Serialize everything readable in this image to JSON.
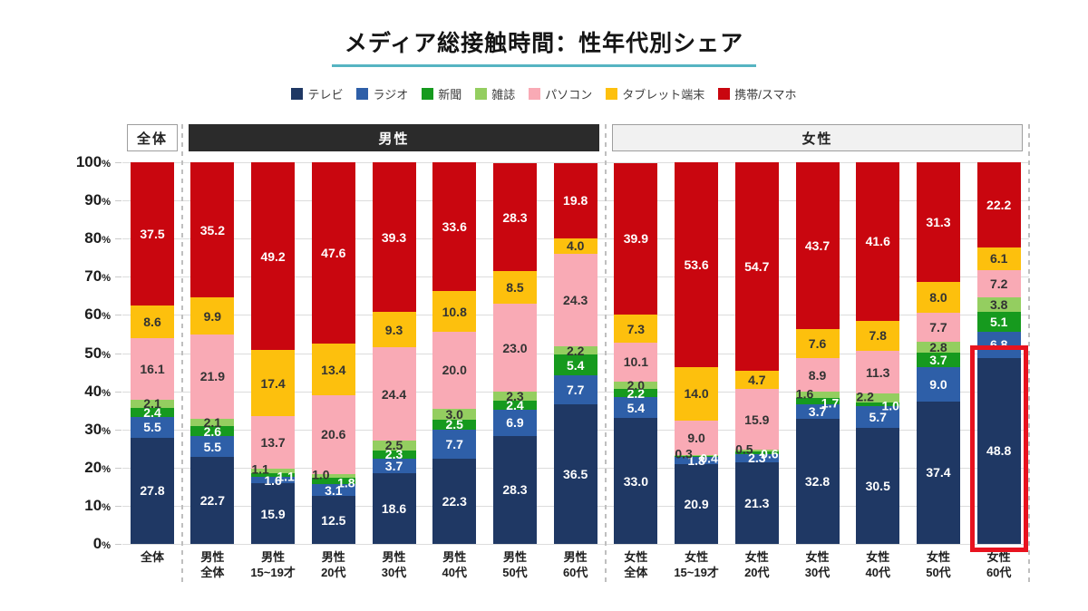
{
  "title": {
    "text": "メディア総接触時間：性年代別シェア",
    "underline_color": "#56B4C2"
  },
  "legend": {
    "items": [
      {
        "label": "テレビ",
        "color": "#1F3864"
      },
      {
        "label": "ラジオ",
        "color": "#2E5FA8"
      },
      {
        "label": "新聞",
        "color": "#169A1E"
      },
      {
        "label": "雑誌",
        "color": "#94CE60"
      },
      {
        "label": "パソコン",
        "color": "#F9AAB5"
      },
      {
        "label": "タブレット端末",
        "color": "#FDC00D"
      },
      {
        "label": "携帯/スマホ",
        "color": "#C9060F"
      }
    ]
  },
  "group_headers": [
    {
      "label": "全体",
      "variant": "outline"
    },
    {
      "label": "男性",
      "variant": "dark"
    },
    {
      "label": "女性",
      "variant": "light"
    }
  ],
  "y_axis": {
    "ticks": [
      100,
      90,
      80,
      70,
      60,
      50,
      40,
      30,
      20,
      10,
      0
    ],
    "suffix": "%"
  },
  "chart_data": {
    "type": "bar",
    "stacked": true,
    "unit": "%",
    "ylim": [
      0,
      100
    ],
    "grid": true,
    "legend_position": "top",
    "categories": [
      {
        "group": 0,
        "label_lines": [
          "全体"
        ]
      },
      {
        "group": 1,
        "label_lines": [
          "男性",
          "全体"
        ]
      },
      {
        "group": 1,
        "label_lines": [
          "男性",
          "15~19才"
        ]
      },
      {
        "group": 1,
        "label_lines": [
          "男性",
          "20代"
        ]
      },
      {
        "group": 1,
        "label_lines": [
          "男性",
          "30代"
        ]
      },
      {
        "group": 1,
        "label_lines": [
          "男性",
          "40代"
        ]
      },
      {
        "group": 1,
        "label_lines": [
          "男性",
          "50代"
        ]
      },
      {
        "group": 1,
        "label_lines": [
          "男性",
          "60代"
        ]
      },
      {
        "group": 2,
        "label_lines": [
          "女性",
          "全体"
        ]
      },
      {
        "group": 2,
        "label_lines": [
          "女性",
          "15~19才"
        ]
      },
      {
        "group": 2,
        "label_lines": [
          "女性",
          "20代"
        ]
      },
      {
        "group": 2,
        "label_lines": [
          "女性",
          "30代"
        ]
      },
      {
        "group": 2,
        "label_lines": [
          "女性",
          "40代"
        ]
      },
      {
        "group": 2,
        "label_lines": [
          "女性",
          "50代"
        ]
      },
      {
        "group": 2,
        "label_lines": [
          "女性",
          "60代"
        ]
      }
    ],
    "series": [
      {
        "name": "テレビ",
        "color": "#1F3864",
        "label_color": "#FFFFFF",
        "values": [
          27.8,
          22.7,
          15.9,
          12.5,
          18.6,
          22.3,
          28.3,
          36.5,
          33.0,
          20.9,
          21.3,
          32.8,
          30.5,
          37.4,
          48.8
        ]
      },
      {
        "name": "ラジオ",
        "color": "#2E5FA8",
        "label_color": "#FFFFFF",
        "values": [
          5.5,
          5.5,
          1.6,
          3.1,
          3.7,
          7.7,
          6.9,
          7.7,
          5.4,
          1.8,
          2.3,
          3.7,
          5.7,
          9.0,
          6.8
        ]
      },
      {
        "name": "新聞",
        "color": "#169A1E",
        "label_color": "#FFFFFF",
        "values": [
          2.4,
          2.6,
          1.1,
          1.8,
          2.3,
          2.5,
          2.4,
          5.4,
          2.2,
          0.4,
          0.6,
          1.7,
          1.0,
          3.7,
          5.1
        ]
      },
      {
        "name": "雑誌",
        "color": "#94CE60",
        "label_color": "#333333",
        "values": [
          2.1,
          2.1,
          1.1,
          1.0,
          2.5,
          3.0,
          2.3,
          2.2,
          2.0,
          0.3,
          0.5,
          1.6,
          2.2,
          2.8,
          3.8
        ]
      },
      {
        "name": "パソコン",
        "color": "#F9AAB5",
        "label_color": "#333333",
        "values": [
          16.1,
          21.9,
          13.7,
          20.6,
          24.4,
          20.0,
          23.0,
          24.3,
          10.1,
          9.0,
          15.9,
          8.9,
          11.3,
          7.7,
          7.2
        ]
      },
      {
        "name": "タブレット端末",
        "color": "#FDC00D",
        "label_color": "#333333",
        "values": [
          8.6,
          9.9,
          17.4,
          13.4,
          9.3,
          10.8,
          8.5,
          4.0,
          7.3,
          14.0,
          4.7,
          7.6,
          7.8,
          8.0,
          6.1
        ]
      },
      {
        "name": "携帯/スマホ",
        "color": "#C9060F",
        "label_color": "#FFFFFF",
        "values": [
          37.5,
          35.2,
          49.2,
          47.6,
          39.3,
          33.6,
          28.3,
          19.8,
          39.9,
          53.6,
          54.7,
          43.7,
          41.6,
          31.3,
          22.2
        ]
      }
    ]
  },
  "highlight": {
    "category_index": 14,
    "series": "テレビ",
    "border_color": "#E8131F"
  }
}
